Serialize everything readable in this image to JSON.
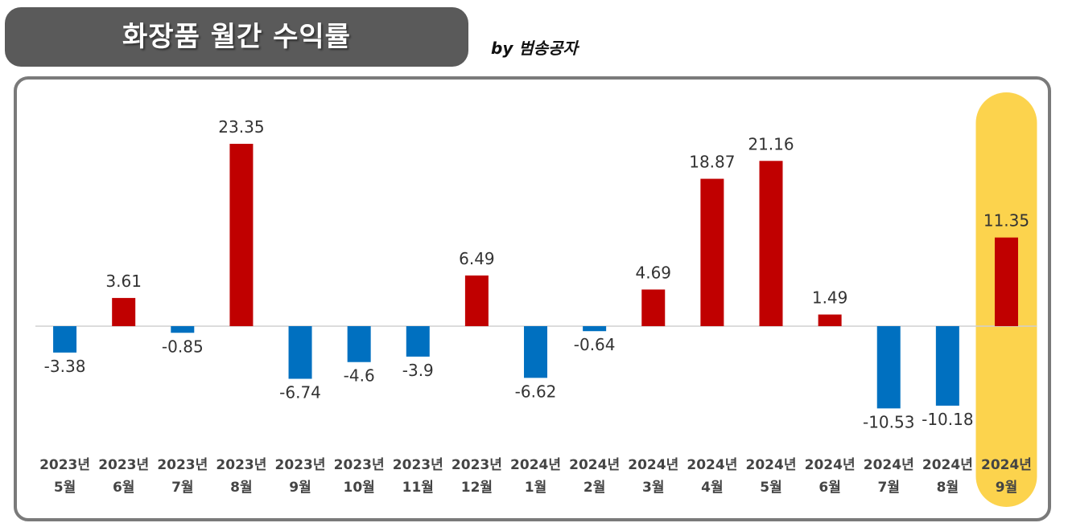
{
  "title": "화장품 월간 수익률",
  "byline": "by 범송공자",
  "colors": {
    "positive": "#c00000",
    "negative": "#0070c0",
    "highlight": "#fcd34d",
    "title_bg": "#5a5a5a",
    "frame": "#7a7a7a"
  },
  "chart_data": {
    "type": "bar",
    "categories": [
      [
        "2023년",
        "5월"
      ],
      [
        "2023년",
        "6월"
      ],
      [
        "2023년",
        "7월"
      ],
      [
        "2023년",
        "8월"
      ],
      [
        "2023년",
        "9월"
      ],
      [
        "2023년",
        "10월"
      ],
      [
        "2023년",
        "11월"
      ],
      [
        "2023년",
        "12월"
      ],
      [
        "2024년",
        "1월"
      ],
      [
        "2024년",
        "2월"
      ],
      [
        "2024년",
        "3월"
      ],
      [
        "2024년",
        "4월"
      ],
      [
        "2024년",
        "5월"
      ],
      [
        "2024년",
        "6월"
      ],
      [
        "2024년",
        "7월"
      ],
      [
        "2024년",
        "8월"
      ],
      [
        "2024년",
        "9월"
      ]
    ],
    "values": [
      -3.38,
      3.61,
      -0.85,
      23.35,
      -6.74,
      -4.6,
      -3.9,
      6.49,
      -6.62,
      -0.64,
      4.69,
      18.87,
      21.16,
      1.49,
      -10.53,
      -10.18,
      11.35
    ],
    "value_labels": [
      "-3.38",
      "3.61",
      "-0.85",
      "23.35",
      "-6.74",
      "-4.6",
      "-3.9",
      "6.49",
      "-6.62",
      "-0.64",
      "4.69",
      "18.87",
      "21.16",
      "1.49",
      "-10.53",
      "-10.18",
      "11.35"
    ],
    "highlight_index": 16,
    "grid": false,
    "legend": "none",
    "xlabel": "",
    "ylabel": ""
  }
}
